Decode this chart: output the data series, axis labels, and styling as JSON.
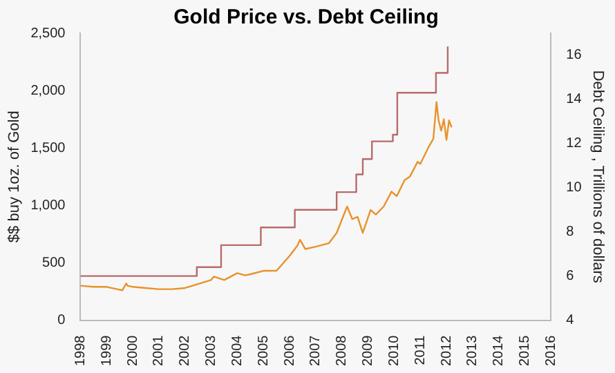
{
  "chart_data": {
    "type": "line",
    "title": "Gold Price vs. Debt Ceiling",
    "ylabel": "$$ buy 1oz. of Gold",
    "y2label": "Debt Ceiling , Trillions of dollars",
    "xlim": [
      1998,
      2016
    ],
    "xticks": [
      1998,
      1999,
      2000,
      2001,
      2002,
      2003,
      2004,
      2005,
      2006,
      2007,
      2008,
      2009,
      2010,
      2011,
      2012,
      2013,
      2014,
      2015,
      2016
    ],
    "ylim": [
      0,
      2500
    ],
    "yticks": [
      0,
      500,
      {
        "value": 1000,
        "label": "1,000"
      },
      {
        "value": 1500,
        "label": "1,500"
      },
      {
        "value": 2000,
        "label": "2,000"
      },
      {
        "value": 2500,
        "label": "2,500"
      }
    ],
    "y2lim": [
      4,
      17
    ],
    "y2ticks": [
      4,
      6,
      8,
      10,
      12,
      14,
      16
    ],
    "grid": false,
    "legend": false,
    "marker": "none",
    "series": [
      {
        "type": "line",
        "color": "#e8922a",
        "x": [
          1998,
          1998.5,
          1999,
          1999.4,
          1999.6,
          1999.75,
          1999.8,
          2000,
          2000.5,
          2001,
          2001.5,
          2002,
          2002.5,
          2003,
          2003.1,
          2003.5,
          2004,
          2004.3,
          2004.5,
          2005,
          2005.5,
          2006,
          2006.3,
          2006.4,
          2006.6,
          2007,
          2007.5,
          2007.8,
          2008.2,
          2008.4,
          2008.6,
          2008.8,
          2009.1,
          2009.3,
          2009.6,
          2009.9,
          2010.1,
          2010.4,
          2010.6,
          2010.9,
          2011.0,
          2011.3,
          2011.5,
          2011.62,
          2011.7,
          2011.8,
          2011.9,
          2012.0,
          2012.1,
          2012.2
        ],
        "values": [
          300,
          290,
          290,
          270,
          260,
          320,
          300,
          290,
          280,
          270,
          270,
          280,
          315,
          350,
          380,
          350,
          410,
          390,
          400,
          430,
          430,
          560,
          650,
          700,
          620,
          640,
          670,
          760,
          990,
          880,
          900,
          760,
          960,
          920,
          990,
          1120,
          1080,
          1220,
          1250,
          1380,
          1360,
          1500,
          1580,
          1900,
          1740,
          1650,
          1750,
          1570,
          1740,
          1680
        ]
      },
      {
        "type": "step",
        "axis": "y2",
        "color": "#b86a6a",
        "x": [
          1998,
          2002.45,
          2003.38,
          2004.9,
          2006.2,
          2007.8,
          2008.55,
          2008.8,
          2009.15,
          2009.95,
          2010.12,
          2011.6,
          2012.05
        ],
        "values": [
          6,
          6.4,
          7.4,
          8.2,
          9,
          9.8,
          10.6,
          11.3,
          12.1,
          12.4,
          14.3,
          15.2,
          16.4
        ]
      }
    ]
  }
}
